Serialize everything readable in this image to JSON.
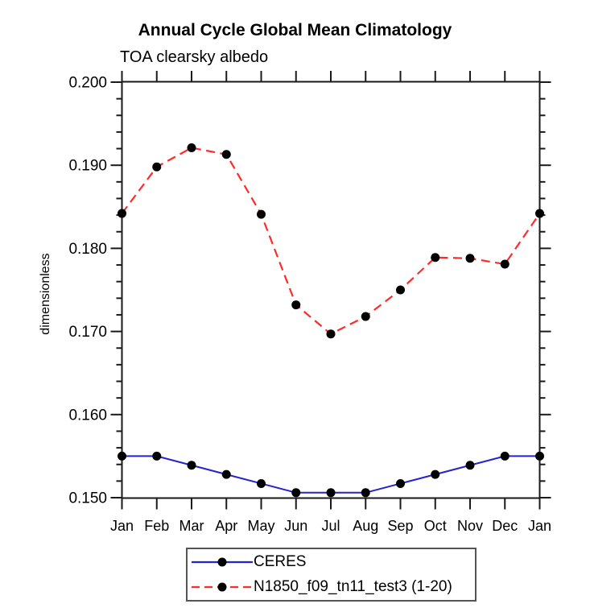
{
  "chart_data": {
    "type": "line",
    "title": "Annual Cycle Global Mean Climatology",
    "subtitle": "TOA clearsky albedo",
    "ylabel": "dimensionless",
    "xlabel": "",
    "categories": [
      "Jan",
      "Feb",
      "Mar",
      "Apr",
      "May",
      "Jun",
      "Jul",
      "Aug",
      "Sep",
      "Oct",
      "Nov",
      "Dec",
      "Jan"
    ],
    "series": [
      {
        "name": "CERES",
        "color": "#2323cf",
        "line_style": "solid",
        "marker": "circle",
        "marker_color": "#000000",
        "values": [
          0.155,
          0.155,
          0.1539,
          0.1528,
          0.1517,
          0.1506,
          0.1506,
          0.1506,
          0.1517,
          0.1528,
          0.1539,
          0.155,
          0.155
        ]
      },
      {
        "name": "N1850_f09_tn11_test3 (1-20)",
        "color": "#ff2a2a",
        "line_style": "dashed",
        "marker": "circle",
        "marker_color": "#000000",
        "values": [
          0.1842,
          0.1898,
          0.1921,
          0.1913,
          0.1841,
          0.1732,
          0.1697,
          0.1718,
          0.175,
          0.1789,
          0.1788,
          0.1781,
          0.1842
        ]
      }
    ],
    "ylim": [
      0.15,
      0.2
    ],
    "y_major_step": 0.01,
    "y_minor_step": 0.002,
    "y_tick_labels": [
      "0.150",
      "0.160",
      "0.170",
      "0.180",
      "0.190",
      "0.200"
    ],
    "grid": false,
    "legend_position": "bottom",
    "axis_color": "#1a1a1a",
    "text_color": "#000000"
  }
}
